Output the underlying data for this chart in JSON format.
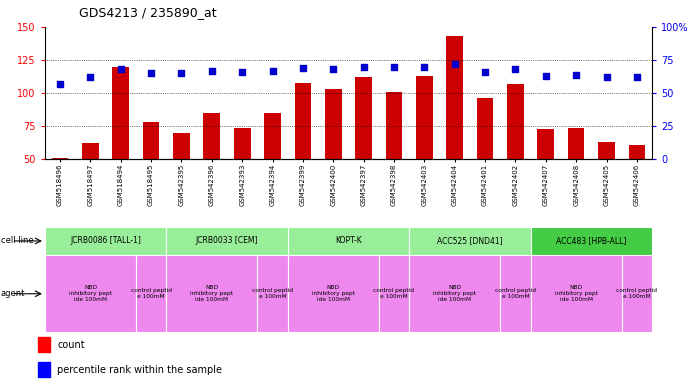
{
  "title": "GDS4213 / 235890_at",
  "samples": [
    "GSM518496",
    "GSM518497",
    "GSM518494",
    "GSM518495",
    "GSM542395",
    "GSM542396",
    "GSM542393",
    "GSM542394",
    "GSM542399",
    "GSM542400",
    "GSM542397",
    "GSM542398",
    "GSM542403",
    "GSM542404",
    "GSM542401",
    "GSM542402",
    "GSM542407",
    "GSM542408",
    "GSM542405",
    "GSM542406"
  ],
  "counts": [
    51,
    62,
    120,
    78,
    70,
    85,
    74,
    85,
    108,
    103,
    112,
    101,
    113,
    143,
    96,
    107,
    73,
    74,
    63,
    61
  ],
  "percentiles": [
    57,
    62,
    68,
    65,
    65,
    67,
    66,
    67,
    69,
    68,
    70,
    70,
    70,
    72,
    66,
    68,
    63,
    64,
    62,
    62
  ],
  "cell_lines": [
    {
      "label": "JCRB0086 [TALL-1]",
      "start": 0,
      "end": 4,
      "color": "#99ee99"
    },
    {
      "label": "JCRB0033 [CEM]",
      "start": 4,
      "end": 8,
      "color": "#99ee99"
    },
    {
      "label": "KOPT-K",
      "start": 8,
      "end": 12,
      "color": "#99ee99"
    },
    {
      "label": "ACC525 [DND41]",
      "start": 12,
      "end": 16,
      "color": "#99ee99"
    },
    {
      "label": "ACC483 [HPB-ALL]",
      "start": 16,
      "end": 20,
      "color": "#44cc44"
    }
  ],
  "agents": [
    {
      "label": "NBD\ninhibitory pept\nide 100mM",
      "start": 0,
      "end": 3,
      "color": "#ee88ee"
    },
    {
      "label": "control peptid\ne 100mM",
      "start": 3,
      "end": 4,
      "color": "#ee88ee"
    },
    {
      "label": "NBD\ninhibitory pept\nide 100mM",
      "start": 4,
      "end": 7,
      "color": "#ee88ee"
    },
    {
      "label": "control peptid\ne 100mM",
      "start": 7,
      "end": 8,
      "color": "#ee88ee"
    },
    {
      "label": "NBD\ninhibitory pept\nide 100mM",
      "start": 8,
      "end": 11,
      "color": "#ee88ee"
    },
    {
      "label": "control peptid\ne 100mM",
      "start": 11,
      "end": 12,
      "color": "#ee88ee"
    },
    {
      "label": "NBD\ninhibitory pept\nide 100mM",
      "start": 12,
      "end": 15,
      "color": "#ee88ee"
    },
    {
      "label": "control peptid\ne 100mM",
      "start": 15,
      "end": 16,
      "color": "#ee88ee"
    },
    {
      "label": "NBD\ninhibitory pept\nide 100mM",
      "start": 16,
      "end": 19,
      "color": "#ee88ee"
    },
    {
      "label": "control peptid\ne 100mM",
      "start": 19,
      "end": 20,
      "color": "#ee88ee"
    }
  ],
  "ylim_left": [
    50,
    150
  ],
  "ylim_right": [
    0,
    100
  ],
  "yticks_left": [
    50,
    75,
    100,
    125,
    150
  ],
  "yticks_right": [
    0,
    25,
    50,
    75,
    100
  ],
  "bar_color": "#cc0000",
  "scatter_color": "#0000cc",
  "grid_color": "#000000",
  "bg_color": "#ffffff",
  "bar_width": 0.55
}
